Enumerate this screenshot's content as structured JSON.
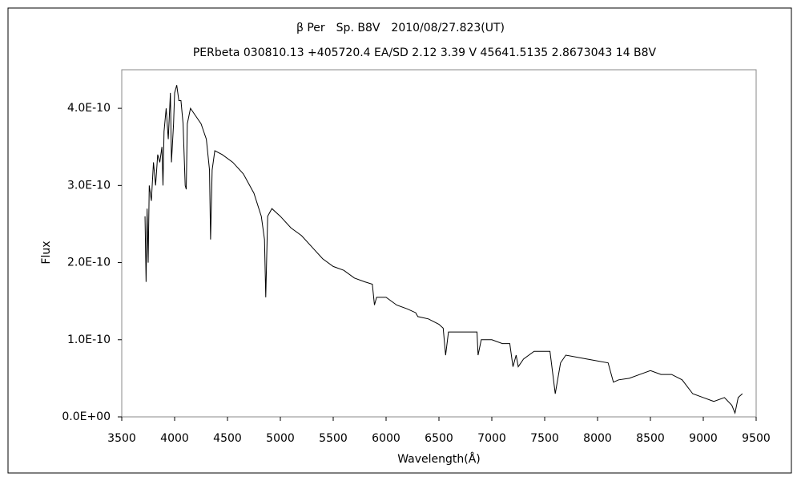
{
  "chart_data": {
    "type": "line",
    "title": "β Per　Sp. B8V　2010/08/27.823(UT)",
    "subtitle": "PERbeta 030810.13 +405720.4 EA/SD 2.12 3.39 V 45641.5135 2.8673043 14 B8V",
    "x_label": "Wavelength(Å)",
    "y_label": "Flux",
    "color": "#000000",
    "xlim": [
      3500,
      9500
    ],
    "xticks": [
      3500,
      4000,
      4500,
      5000,
      5500,
      6000,
      6500,
      7000,
      7500,
      8000,
      8500,
      9000,
      9500
    ],
    "ylim": [
      0,
      4.5e-10
    ],
    "yticks": [
      {
        "value": 0,
        "label": "0.0E+00"
      },
      {
        "value": 1e-10,
        "label": "1.0E-10"
      },
      {
        "value": 2e-10,
        "label": "2.0E-10"
      },
      {
        "value": 3e-10,
        "label": "3.0E-10"
      },
      {
        "value": 4e-10,
        "label": "4.0E-10"
      }
    ],
    "x": [
      3720,
      3730,
      3740,
      3750,
      3760,
      3780,
      3800,
      3820,
      3840,
      3860,
      3880,
      3890,
      3900,
      3920,
      3940,
      3960,
      3970,
      3990,
      4000,
      4020,
      4040,
      4060,
      4080,
      4100,
      4110,
      4120,
      4150,
      4200,
      4250,
      4300,
      4330,
      4340,
      4355,
      4380,
      4450,
      4550,
      4650,
      4750,
      4820,
      4850,
      4862,
      4880,
      4920,
      5000,
      5100,
      5200,
      5300,
      5400,
      5500,
      5600,
      5700,
      5800,
      5870,
      5890,
      5910,
      6000,
      6100,
      6200,
      6280,
      6300,
      6400,
      6500,
      6540,
      6563,
      6590,
      6700,
      6860,
      6870,
      6900,
      7000,
      7100,
      7170,
      7200,
      7230,
      7250,
      7300,
      7400,
      7550,
      7600,
      7650,
      7700,
      7900,
      8100,
      8150,
      8200,
      8300,
      8400,
      8500,
      8600,
      8700,
      8800,
      8900,
      9000,
      9100,
      9200,
      9270,
      9300,
      9330,
      9370
    ],
    "values": [
      2.6e-10,
      1.75e-10,
      2.7e-10,
      2e-10,
      3e-10,
      2.8e-10,
      3.3e-10,
      3e-10,
      3.4e-10,
      3.3e-10,
      3.5e-10,
      3e-10,
      3.7e-10,
      4e-10,
      3.6e-10,
      4.2e-10,
      3.3e-10,
      3.8e-10,
      4.2e-10,
      4.3e-10,
      4.1e-10,
      4.1e-10,
      3.8e-10,
      3e-10,
      2.95e-10,
      3.8e-10,
      4e-10,
      3.9e-10,
      3.8e-10,
      3.6e-10,
      3.2e-10,
      2.3e-10,
      3.2e-10,
      3.45e-10,
      3.4e-10,
      3.3e-10,
      3.15e-10,
      2.9e-10,
      2.6e-10,
      2.3e-10,
      1.55e-10,
      2.6e-10,
      2.7e-10,
      2.6e-10,
      2.45e-10,
      2.35e-10,
      2.2e-10,
      2.05e-10,
      1.95e-10,
      1.9e-10,
      1.8e-10,
      1.75e-10,
      1.72e-10,
      1.45e-10,
      1.55e-10,
      1.55e-10,
      1.45e-10,
      1.4e-10,
      1.35e-10,
      1.3e-10,
      1.27e-10,
      1.2e-10,
      1.15e-10,
      8e-11,
      1.1e-10,
      1.1e-10,
      1.1e-10,
      8e-11,
      1e-10,
      1e-10,
      9.5e-11,
      9.5e-11,
      6.5e-11,
      8e-11,
      6.5e-11,
      7.5e-11,
      8.5e-11,
      8.5e-11,
      3e-11,
      7e-11,
      8e-11,
      7.5e-11,
      7e-11,
      4.5e-11,
      4.8e-11,
      5e-11,
      5.5e-11,
      6e-11,
      5.5e-11,
      5.5e-11,
      4.8e-11,
      3e-11,
      2.5e-11,
      2e-11,
      2.5e-11,
      1.5e-11,
      5e-12,
      2.5e-11,
      3e-11
    ]
  }
}
